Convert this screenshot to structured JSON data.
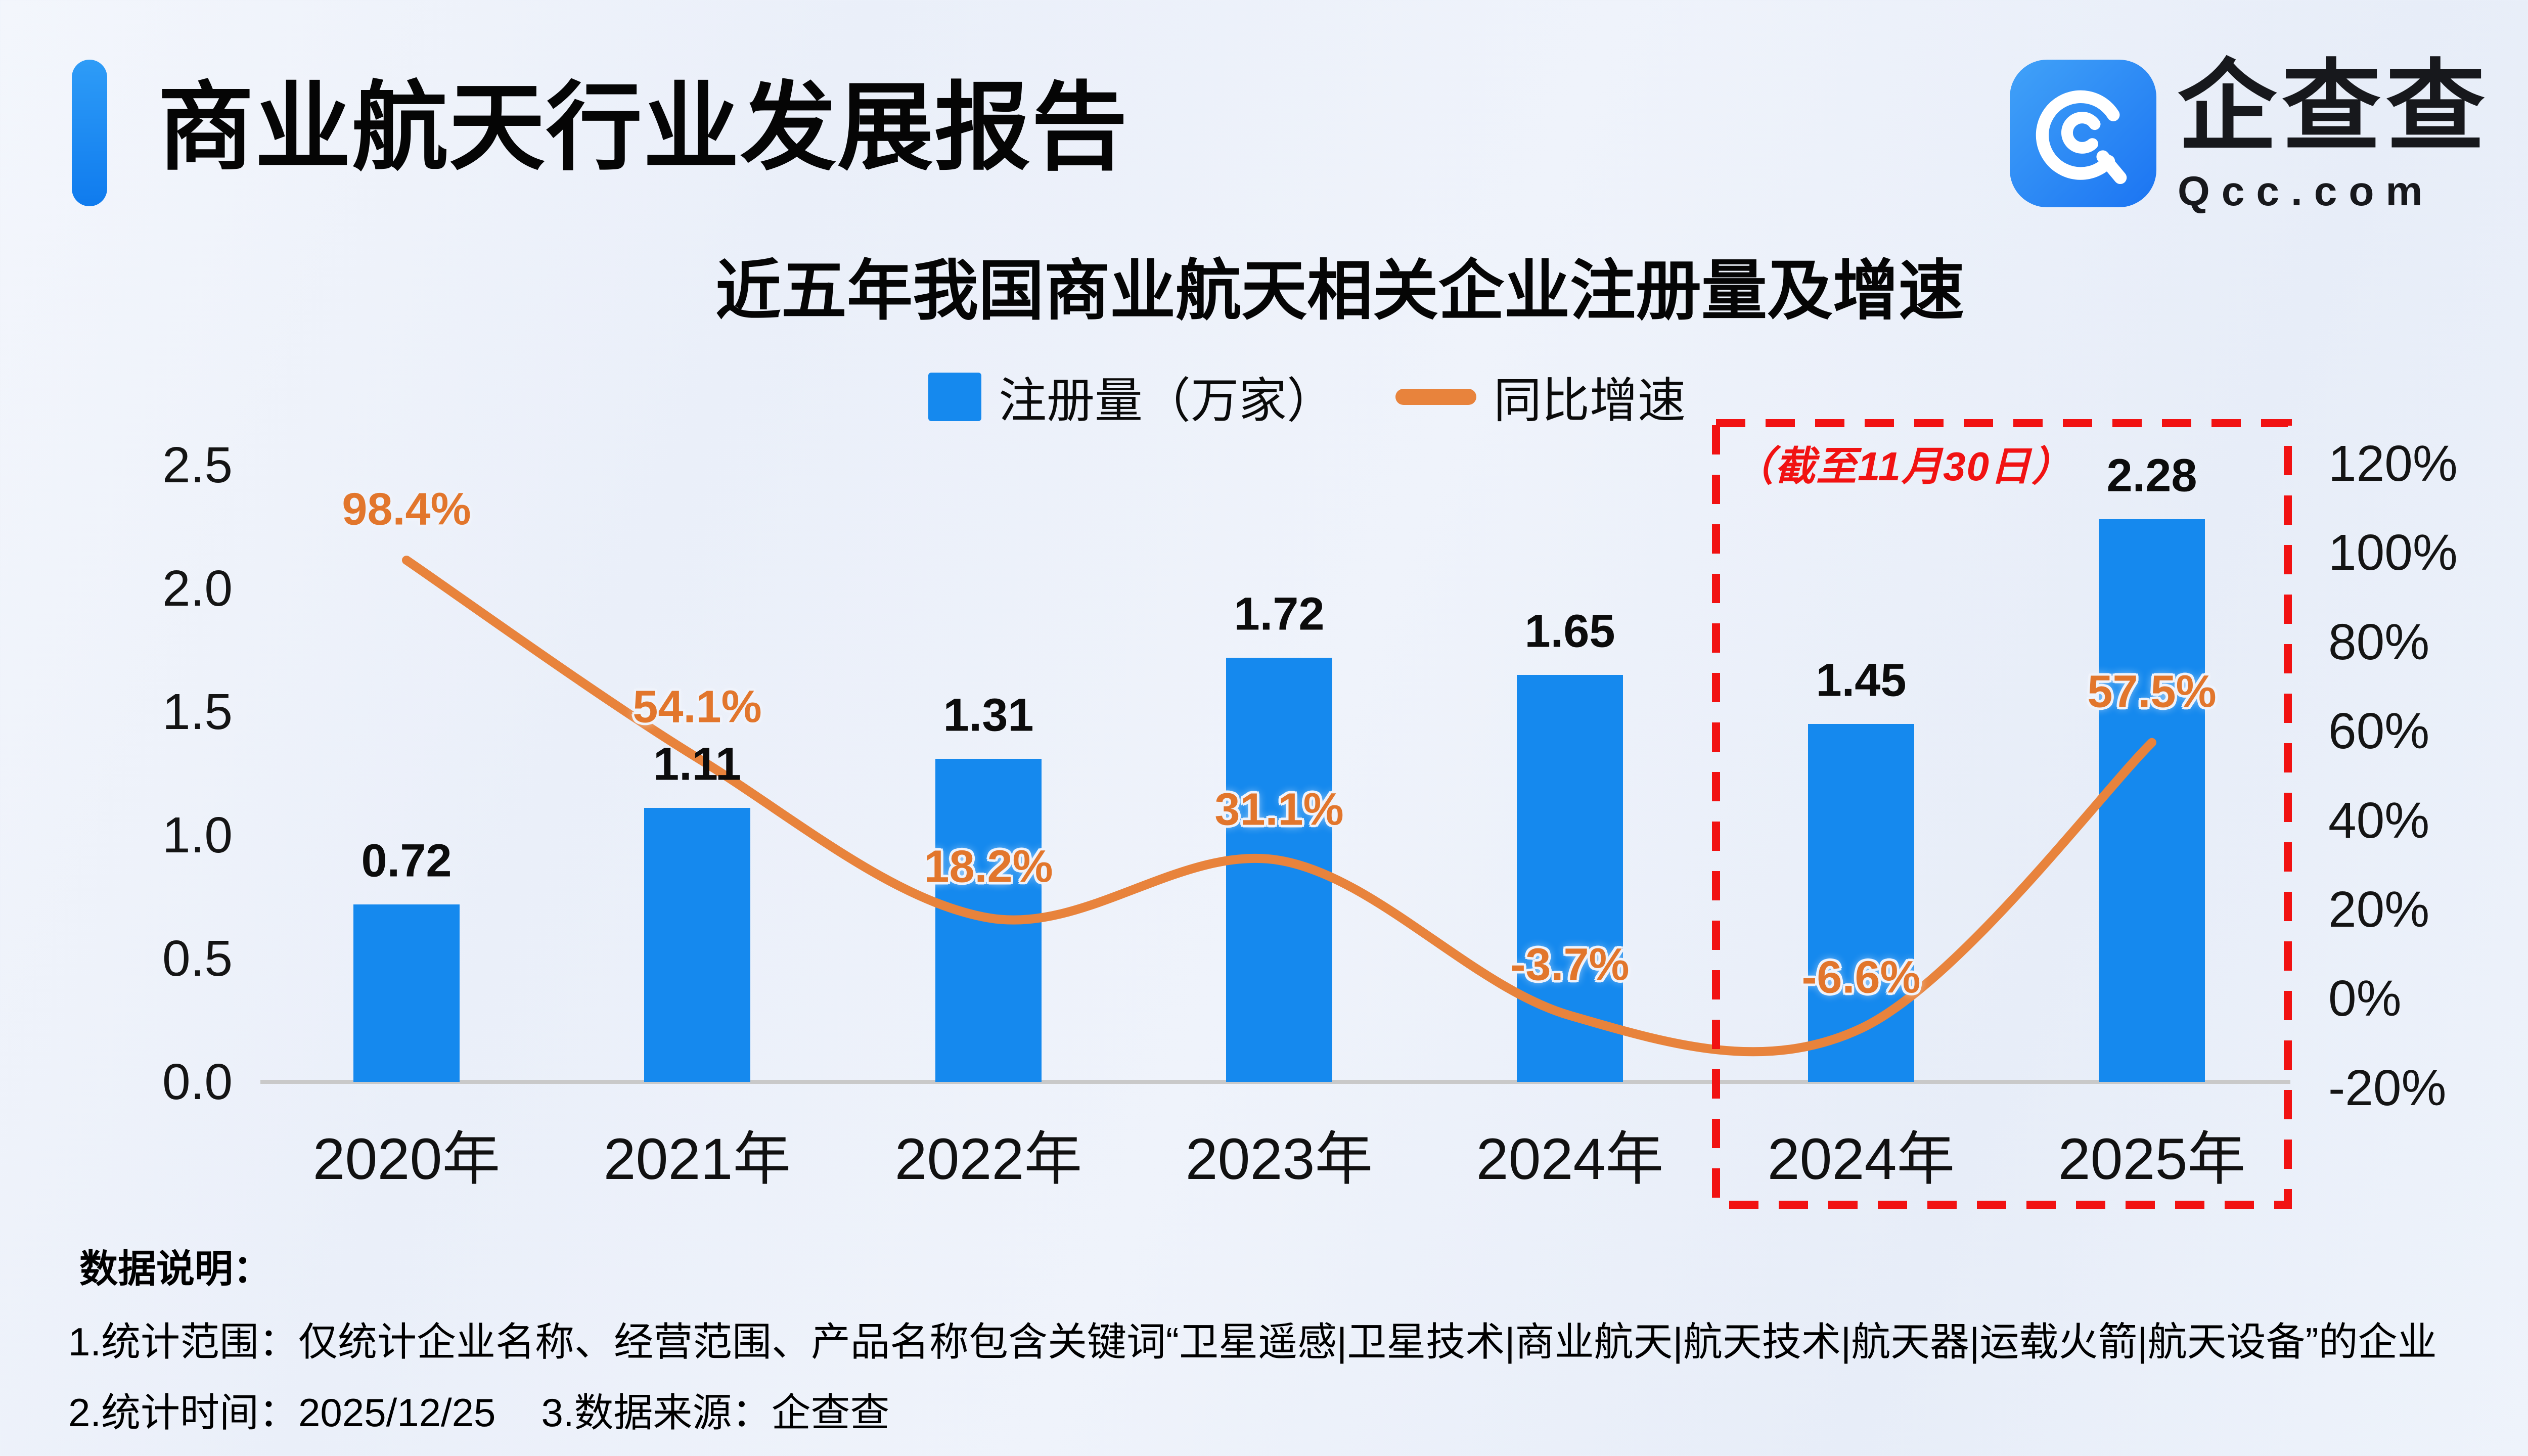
{
  "header": {
    "title": "商业航天行业发展报告",
    "logo": {
      "cn": "企查查",
      "en": "Qcc.com"
    }
  },
  "chart_data": {
    "type": "bar",
    "title": "近五年我国商业航天相关企业注册量及增速",
    "categories": [
      "2020年",
      "2021年",
      "2022年",
      "2023年",
      "2024年",
      "2024年",
      "2025年"
    ],
    "series": [
      {
        "name": "注册量（万家）",
        "type": "bar",
        "axis": "left",
        "color": "#1589ee",
        "values": [
          0.72,
          1.11,
          1.31,
          1.72,
          1.65,
          1.45,
          2.28
        ]
      },
      {
        "name": "同比增速",
        "type": "line",
        "axis": "right",
        "color": "#e8833c",
        "unit": "%",
        "values": [
          98.4,
          54.1,
          18.2,
          31.1,
          -3.7,
          -6.6,
          57.5
        ]
      }
    ],
    "left_axis": {
      "ticks": [
        "2.5",
        "2.0",
        "1.5",
        "1.0",
        "0.5",
        "0.0"
      ],
      "range": [
        0,
        2.5
      ]
    },
    "right_axis": {
      "ticks": [
        "120%",
        "100%",
        "80%",
        "60%",
        "40%",
        "20%",
        "0%",
        "-20%"
      ],
      "range": [
        -20,
        120
      ]
    },
    "legend_position": "top",
    "grid": false,
    "annotation": {
      "label": "（截至11月30日）",
      "applies_to": [
        "2024年",
        "2025年"
      ],
      "color": "#f11212"
    }
  },
  "footer": {
    "heading": "数据说明：",
    "line1": "1.统计范围：仅统计企业名称、经营范围、产品名称包含关键词“卫星遥感|卫星技术|商业航天|航天技术|航天器|运载火箭|航天设备”的企业",
    "line2a": "2.统计时间：2025/12/25",
    "line2b": "3.数据来源：企查查"
  }
}
